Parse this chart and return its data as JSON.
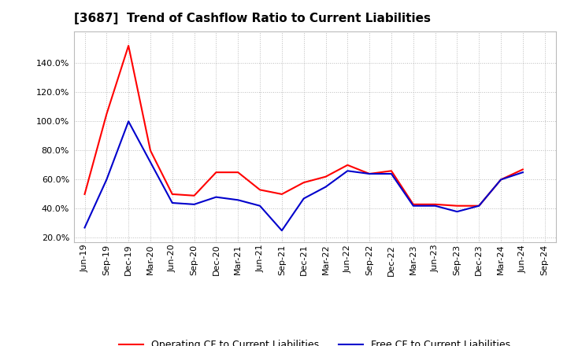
{
  "title": "[3687]  Trend of Cashflow Ratio to Current Liabilities",
  "x_labels": [
    "Jun-19",
    "Sep-19",
    "Dec-19",
    "Mar-20",
    "Jun-20",
    "Sep-20",
    "Dec-20",
    "Mar-21",
    "Jun-21",
    "Sep-21",
    "Dec-21",
    "Mar-22",
    "Jun-22",
    "Sep-22",
    "Dec-22",
    "Mar-23",
    "Jun-23",
    "Sep-23",
    "Dec-23",
    "Mar-24",
    "Jun-24",
    "Sep-24"
  ],
  "operating_cf": [
    0.5,
    1.05,
    1.52,
    0.8,
    0.5,
    0.49,
    0.65,
    0.65,
    0.53,
    0.5,
    0.58,
    0.62,
    0.7,
    0.64,
    0.66,
    0.43,
    0.43,
    0.42,
    0.42,
    0.6,
    0.67,
    null
  ],
  "free_cf": [
    0.27,
    0.6,
    1.0,
    0.72,
    0.44,
    0.43,
    0.48,
    0.46,
    0.42,
    0.25,
    0.47,
    0.55,
    0.66,
    0.64,
    0.64,
    0.42,
    0.42,
    0.38,
    0.42,
    0.6,
    0.65,
    null
  ],
  "operating_color": "#ff0000",
  "free_color": "#0000cc",
  "ylim_min": 0.17,
  "ylim_max": 1.62,
  "yticks": [
    0.2,
    0.4,
    0.6,
    0.8,
    1.0,
    1.2,
    1.4
  ],
  "background_color": "#ffffff",
  "grid_color": "#aaaaaa",
  "legend_op": "Operating CF to Current Liabilities",
  "legend_free": "Free CF to Current Liabilities",
  "title_fontsize": 11,
  "tick_fontsize": 8
}
